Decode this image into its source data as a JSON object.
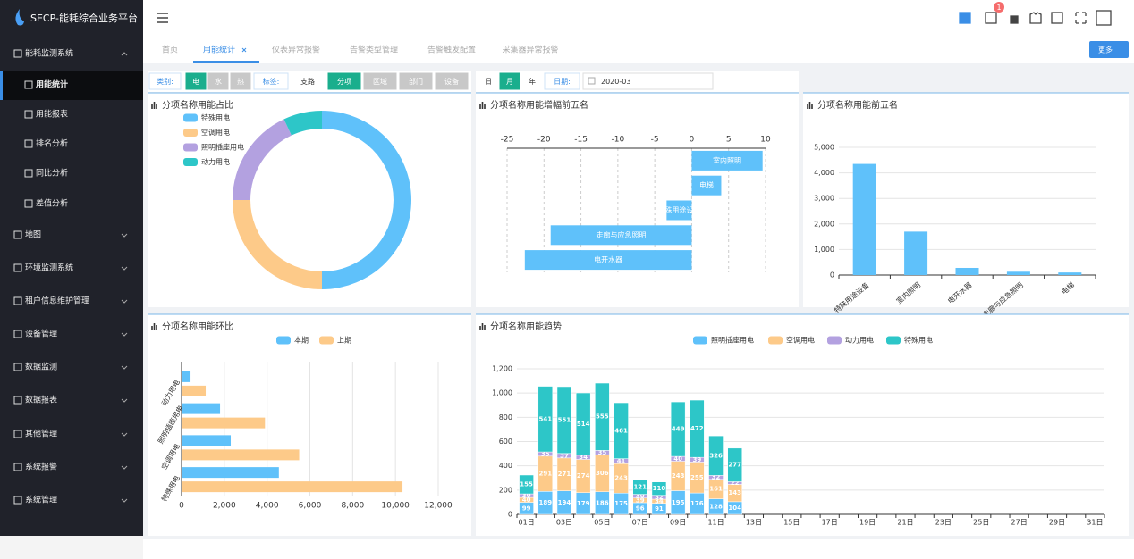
{
  "sidebar": {
    "title": "SECP-能耗综合业务平台",
    "items": [
      "能耗监测系统",
      "用能统计",
      "用能报表",
      "排名分析",
      "同比分析",
      "差值分析",
      "地图",
      "环境监测系统",
      "租户信息维护管理",
      "设备管理",
      "数据监测",
      "数据报表",
      "其他管理",
      "系统报警",
      "系统管理"
    ]
  },
  "header": {
    "badge": "1"
  },
  "tabs": {
    "items": [
      "首页",
      "用能统计",
      "仪表异常报警",
      "告警类型管理",
      "告警触发配置",
      "采集器异常报警"
    ],
    "more": "更多"
  },
  "filters": {
    "category_label": "类别:",
    "category_options": [
      "电",
      "水",
      "热"
    ],
    "tag_label": "标签:",
    "tag_options": [
      "支路",
      "分项",
      "区域",
      "部门",
      "设备"
    ],
    "period_options": [
      "日",
      "月",
      "年"
    ],
    "date_label": "日期:",
    "date_value": "2020-03"
  },
  "chart_data": [
    {
      "type": "donut",
      "title": "分项名称用能占比",
      "categories": [
        "特殊用电",
        "空调用电",
        "照明插座用电",
        "动力用电"
      ],
      "values": [
        50,
        25,
        18,
        7
      ],
      "colors": [
        "#5fc1fa",
        "#fdca89",
        "#b3a1e0",
        "#2dc6c8"
      ]
    },
    {
      "type": "bar",
      "horizontal": true,
      "title": "分项名称用能增幅前五名",
      "categories": [
        "室内照明",
        "电梯",
        "特殊用途设备",
        "走廊与应急照明",
        "电开水器"
      ],
      "values": [
        9.6,
        4.0,
        -3.4,
        -19.1,
        -22.6
      ],
      "color": "#5fc1fa",
      "xlim": [
        -25,
        10
      ],
      "xticks": [
        -25,
        -20,
        -15,
        -10,
        -5,
        0,
        5,
        10
      ],
      "grid": true
    },
    {
      "type": "bar",
      "title": "分项名称用能前五名",
      "categories": [
        "特殊用途设备",
        "室内照明",
        "电开水器",
        "走廊与应急照明",
        "电梯"
      ],
      "values": [
        4350,
        1700,
        280,
        130,
        100
      ],
      "color": "#5fc1fa",
      "ylim": [
        0,
        5000
      ],
      "yticks": [
        0,
        {
          "value": 1000,
          "label": "1,000"
        },
        {
          "value": 2000,
          "label": "2,000"
        },
        {
          "value": 3000,
          "label": "3,000"
        },
        {
          "value": 4000,
          "label": "4,000"
        },
        {
          "value": 5000,
          "label": "5,000"
        }
      ],
      "grid": true
    },
    {
      "type": "bar",
      "horizontal": true,
      "title": "分项名称用能环比",
      "categories": [
        "特殊用电",
        "空调用电",
        "照明插座用电",
        "动力用电"
      ],
      "series": [
        {
          "name": "本期",
          "color": "#5fc1fa",
          "values": [
            4550,
            2300,
            1800,
            420
          ]
        },
        {
          "name": "上期",
          "color": "#fdca89",
          "values": [
            10330,
            5500,
            3900,
            1130
          ]
        }
      ],
      "xlim": [
        0,
        12000
      ],
      "xticks": [
        0,
        {
          "value": 2000,
          "label": "2,000"
        },
        {
          "value": 4000,
          "label": "4,000"
        },
        {
          "value": 6000,
          "label": "6,000"
        },
        {
          "value": 8000,
          "label": "8,000"
        },
        {
          "value": 10000,
          "label": "10,000"
        },
        {
          "value": 12000,
          "label": "12,000"
        }
      ],
      "grid": true
    },
    {
      "type": "bar",
      "stacked": true,
      "title": "分项名称用能趋势",
      "categories": [
        "01日",
        null,
        "03日",
        null,
        "05日",
        null,
        "07日",
        null,
        "09日",
        null,
        "11日",
        null,
        "13日",
        null,
        "15日",
        null,
        "17日",
        null,
        "19日",
        null,
        "21日",
        null,
        "23日",
        null,
        "25日",
        null,
        "27日",
        null,
        "29日",
        null,
        "31日"
      ],
      "series": [
        {
          "name": "照明插座用电",
          "color": "#5fc1fa",
          "values": [
            99,
            189,
            194,
            179,
            186,
            175,
            96,
            91,
            195,
            176,
            128,
            104,
            null,
            null,
            null,
            null,
            null,
            null,
            null,
            null,
            null,
            null,
            null,
            null,
            null,
            null,
            null,
            null,
            null,
            null,
            null
          ]
        },
        {
          "name": "空调用电",
          "color": "#fdca89",
          "values": [
            40,
            291,
            271,
            274,
            306,
            243,
            39,
            34,
            243,
            255,
            161,
            143,
            null,
            null,
            null,
            null,
            null,
            null,
            null,
            null,
            null,
            null,
            null,
            null,
            null,
            null,
            null,
            null,
            null,
            null,
            null
          ]
        },
        {
          "name": "动力用电",
          "color": "#b3a1e0",
          "values": [
            30,
            35,
            37,
            34,
            35,
            41,
            30,
            32,
            40,
            39,
            32,
            22,
            null,
            null,
            null,
            null,
            null,
            null,
            null,
            null,
            null,
            null,
            null,
            null,
            null,
            null,
            null,
            null,
            null,
            null,
            null
          ]
        },
        {
          "name": "特殊用电",
          "color": "#2dc6c8",
          "values": [
            155,
            541,
            551,
            514,
            555,
            461,
            121,
            110,
            449,
            472,
            326,
            277,
            null,
            null,
            null,
            null,
            null,
            null,
            null,
            null,
            null,
            null,
            null,
            null,
            null,
            null,
            null,
            null,
            null,
            null,
            null
          ]
        }
      ],
      "ylim": [
        0,
        1200
      ],
      "yticks": [
        0,
        200,
        400,
        600,
        800,
        {
          "value": 1000,
          "label": "1,000"
        },
        {
          "value": 1200,
          "label": "1,200"
        }
      ],
      "grid": true
    }
  ]
}
